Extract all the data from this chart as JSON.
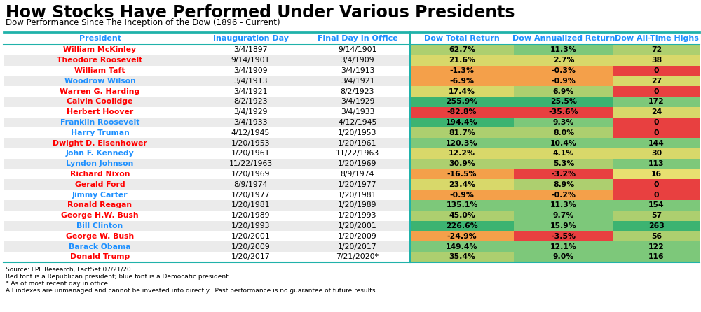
{
  "title": "How Stocks Have Performed Under Various Presidents",
  "subtitle": "Dow Performance Since The Inception of the Dow (1896 - Current)",
  "columns": [
    "President",
    "Inauguration Day",
    "Final Day In Office",
    "Dow Total Return",
    "Dow Annualized Return",
    "Dow All-Time Highs"
  ],
  "col_header_color": "#1E90FF",
  "rows": [
    {
      "president": "William McKinley",
      "party": "R",
      "inaug": "3/4/1897",
      "final": "9/14/1901",
      "total": "62.7%",
      "annualized": "11.3%",
      "highs": "72",
      "total_val": 62.7,
      "ann_val": 11.3,
      "highs_val": 72
    },
    {
      "president": "Theodore Roosevelt",
      "party": "R",
      "inaug": "9/14/1901",
      "final": "3/4/1909",
      "total": "21.6%",
      "annualized": "2.7%",
      "highs": "38",
      "total_val": 21.6,
      "ann_val": 2.7,
      "highs_val": 38
    },
    {
      "president": "William Taft",
      "party": "R",
      "inaug": "3/4/1909",
      "final": "3/4/1913",
      "total": "-1.3%",
      "annualized": "-0.3%",
      "highs": "0",
      "total_val": -1.3,
      "ann_val": -0.3,
      "highs_val": 0
    },
    {
      "president": "Woodrow Wilson",
      "party": "D",
      "inaug": "3/4/1913",
      "final": "3/4/1921",
      "total": "-6.9%",
      "annualized": "-0.9%",
      "highs": "27",
      "total_val": -6.9,
      "ann_val": -0.9,
      "highs_val": 27
    },
    {
      "president": "Warren G. Harding",
      "party": "R",
      "inaug": "3/4/1921",
      "final": "8/2/1923",
      "total": "17.4%",
      "annualized": "6.9%",
      "highs": "0",
      "total_val": 17.4,
      "ann_val": 6.9,
      "highs_val": 0
    },
    {
      "president": "Calvin Coolidge",
      "party": "R",
      "inaug": "8/2/1923",
      "final": "3/4/1929",
      "total": "255.9%",
      "annualized": "25.5%",
      "highs": "172",
      "total_val": 255.9,
      "ann_val": 25.5,
      "highs_val": 172
    },
    {
      "president": "Herbert Hoover",
      "party": "R",
      "inaug": "3/4/1929",
      "final": "3/4/1933",
      "total": "-82.8%",
      "annualized": "-35.6%",
      "highs": "24",
      "total_val": -82.8,
      "ann_val": -35.6,
      "highs_val": 24
    },
    {
      "president": "Franklin Roosevelt",
      "party": "D",
      "inaug": "3/4/1933",
      "final": "4/12/1945",
      "total": "194.4%",
      "annualized": "9.3%",
      "highs": "0",
      "total_val": 194.4,
      "ann_val": 9.3,
      "highs_val": 0
    },
    {
      "president": "Harry Truman",
      "party": "D",
      "inaug": "4/12/1945",
      "final": "1/20/1953",
      "total": "81.7%",
      "annualized": "8.0%",
      "highs": "0",
      "total_val": 81.7,
      "ann_val": 8.0,
      "highs_val": 0
    },
    {
      "president": "Dwight D. Eisenhower",
      "party": "R",
      "inaug": "1/20/1953",
      "final": "1/20/1961",
      "total": "120.3%",
      "annualized": "10.4%",
      "highs": "144",
      "total_val": 120.3,
      "ann_val": 10.4,
      "highs_val": 144
    },
    {
      "president": "John F. Kennedy",
      "party": "D",
      "inaug": "1/20/1961",
      "final": "11/22/1963",
      "total": "12.2%",
      "annualized": "4.1%",
      "highs": "30",
      "total_val": 12.2,
      "ann_val": 4.1,
      "highs_val": 30
    },
    {
      "president": "Lyndon Johnson",
      "party": "D",
      "inaug": "11/22/1963",
      "final": "1/20/1969",
      "total": "30.9%",
      "annualized": "5.3%",
      "highs": "113",
      "total_val": 30.9,
      "ann_val": 5.3,
      "highs_val": 113
    },
    {
      "president": "Richard Nixon",
      "party": "R",
      "inaug": "1/20/1969",
      "final": "8/9/1974",
      "total": "-16.5%",
      "annualized": "-3.2%",
      "highs": "16",
      "total_val": -16.5,
      "ann_val": -3.2,
      "highs_val": 16
    },
    {
      "president": "Gerald Ford",
      "party": "R",
      "inaug": "8/9/1974",
      "final": "1/20/1977",
      "total": "23.4%",
      "annualized": "8.9%",
      "highs": "0",
      "total_val": 23.4,
      "ann_val": 8.9,
      "highs_val": 0
    },
    {
      "president": "Jimmy Carter",
      "party": "D",
      "inaug": "1/20/1977",
      "final": "1/20/1981",
      "total": "-0.9%",
      "annualized": "-0.2%",
      "highs": "0",
      "total_val": -0.9,
      "ann_val": -0.2,
      "highs_val": 0
    },
    {
      "president": "Ronald Reagan",
      "party": "R",
      "inaug": "1/20/1981",
      "final": "1/20/1989",
      "total": "135.1%",
      "annualized": "11.3%",
      "highs": "154",
      "total_val": 135.1,
      "ann_val": 11.3,
      "highs_val": 154
    },
    {
      "president": "George H.W. Bush",
      "party": "R",
      "inaug": "1/20/1989",
      "final": "1/20/1993",
      "total": "45.0%",
      "annualized": "9.7%",
      "highs": "57",
      "total_val": 45.0,
      "ann_val": 9.7,
      "highs_val": 57
    },
    {
      "president": "Bill Clinton",
      "party": "D",
      "inaug": "1/20/1993",
      "final": "1/20/2001",
      "total": "226.6%",
      "annualized": "15.9%",
      "highs": "263",
      "total_val": 226.6,
      "ann_val": 15.9,
      "highs_val": 263
    },
    {
      "president": "George W. Bush",
      "party": "R",
      "inaug": "1/20/2001",
      "final": "1/20/2009",
      "total": "-24.9%",
      "annualized": "-3.5%",
      "highs": "56",
      "total_val": -24.9,
      "ann_val": -3.5,
      "highs_val": 56
    },
    {
      "president": "Barack Obama",
      "party": "D",
      "inaug": "1/20/2009",
      "final": "1/20/2017",
      "total": "149.4%",
      "annualized": "12.1%",
      "highs": "122",
      "total_val": 149.4,
      "ann_val": 12.1,
      "highs_val": 122
    },
    {
      "president": "Donald Trump",
      "party": "R",
      "inaug": "1/20/2017",
      "final": "7/21/2020*",
      "total": "35.4%",
      "annualized": "9.0%",
      "highs": "116",
      "total_val": 35.4,
      "ann_val": 9.0,
      "highs_val": 116
    }
  ],
  "republican_color": "#FF0000",
  "democrat_color": "#1E90FF",
  "bg_color": "#FFFFFF",
  "teal_line_color": "#20B2AA",
  "footnotes": [
    "Source: LPL Research, FactSet 07/21/20",
    "Red font is a Republican president; blue font is a Democatic president",
    "* As of most recent day in office",
    "All indexes are unmanaged and cannot be invested into directly.  Past performance is no guarantee of future results."
  ]
}
